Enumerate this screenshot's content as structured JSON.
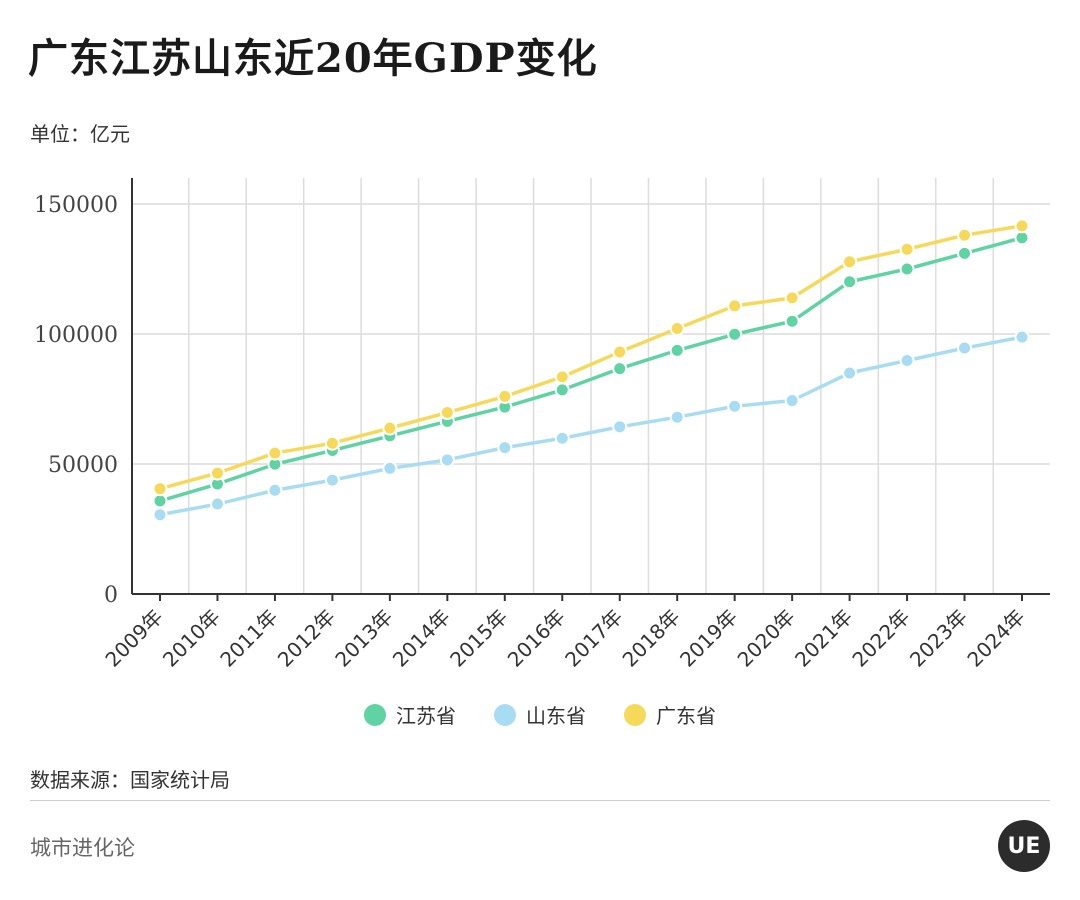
{
  "header": {
    "title": "广东江苏山东近20年GDP变化",
    "unit": "单位：亿元"
  },
  "footer": {
    "source": "数据来源：国家统计局",
    "brand": "城市进化论",
    "logo_text": "UE"
  },
  "colors": {
    "grid": "#dcdcdc",
    "axis": "#333333",
    "text": "#333333"
  },
  "chart_data": {
    "type": "line",
    "title": "广东江苏山东近20年GDP变化",
    "ylabel": "单位：亿元",
    "ylim": [
      0,
      160000
    ],
    "yticks": [
      0,
      50000,
      100000,
      150000
    ],
    "grid": true,
    "legend_position": "bottom",
    "categories": [
      "2009年",
      "2010年",
      "2011年",
      "2012年",
      "2013年",
      "2014年",
      "2015年",
      "2016年",
      "2017年",
      "2018年",
      "2019年",
      "2020年",
      "2021年",
      "2022年",
      "2023年",
      "2024年"
    ],
    "series": [
      {
        "name": "江苏省",
        "color": "#5fd3a3",
        "values": [
          35800,
          42300,
          49900,
          55200,
          60800,
          66400,
          71900,
          78500,
          86700,
          93700,
          99900,
          104900,
          120100,
          125000,
          131000,
          137000
        ]
      },
      {
        "name": "山东省",
        "color": "#a8dcf2",
        "values": [
          30500,
          34600,
          39900,
          43800,
          48300,
          51600,
          56300,
          59900,
          64300,
          68000,
          72200,
          74400,
          85000,
          89800,
          94600,
          98800
        ]
      },
      {
        "name": "广东省",
        "color": "#f7d95a",
        "values": [
          40500,
          46500,
          54200,
          58000,
          63800,
          69800,
          76000,
          83500,
          93100,
          102100,
          110800,
          113900,
          127800,
          132600,
          138000,
          141600
        ]
      }
    ]
  }
}
